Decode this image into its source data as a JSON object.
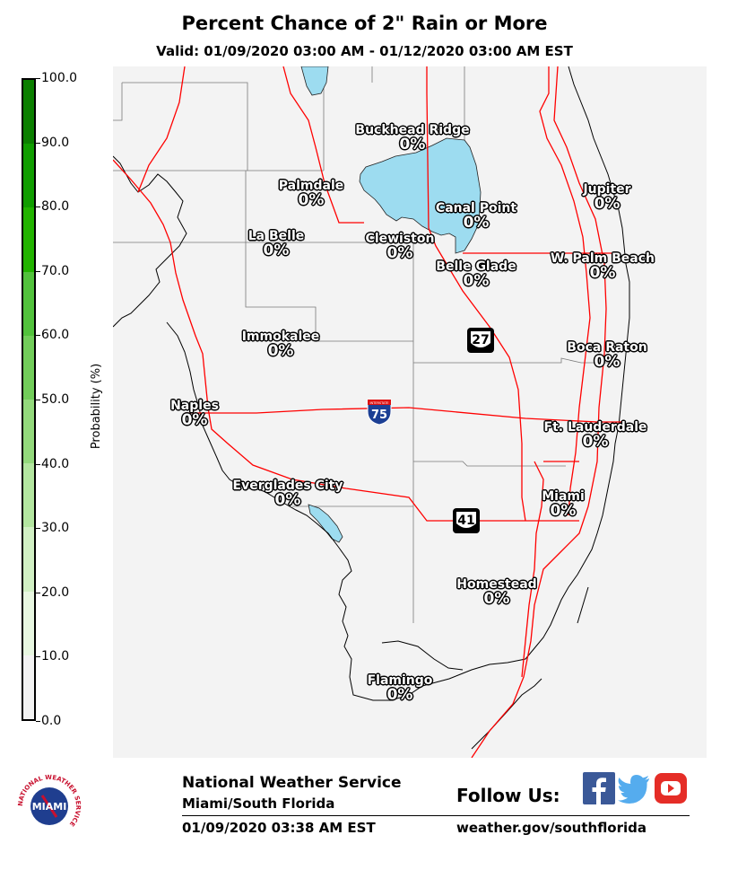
{
  "title": "Percent Chance of 2\" Rain or More",
  "subtitle": "Valid: 01/09/2020 03:00 AM - 01/12/2020 03:00 AM EST",
  "colorbar": {
    "label": "Probability (%)",
    "ticks": [
      "100.0",
      "90.0",
      "80.0",
      "70.0",
      "60.0",
      "50.0",
      "40.0",
      "30.0",
      "20.0",
      "10.0",
      "0.0"
    ],
    "colors": [
      "#0b7f00",
      "#109d00",
      "#22b300",
      "#52c23c",
      "#72cd5a",
      "#93d97c",
      "#b3e6a0",
      "#d1f0c4",
      "#e8f7e1",
      "#f3f3f3"
    ]
  },
  "map": {
    "land_color": "#f3f3f3",
    "water_color": "#9ddcf0",
    "road_color": "#ff0000"
  },
  "cities": [
    {
      "name": "Buckhead Ridge",
      "value": "0%"
    },
    {
      "name": "Palmdale",
      "value": "0%"
    },
    {
      "name": "Canal Point",
      "value": "0%"
    },
    {
      "name": "Jupiter",
      "value": "0%"
    },
    {
      "name": "La Belle",
      "value": "0%"
    },
    {
      "name": "Clewiston",
      "value": "0%"
    },
    {
      "name": "W. Palm Beach",
      "value": "0%"
    },
    {
      "name": "Belle Glade",
      "value": "0%"
    },
    {
      "name": "Immokalee",
      "value": "0%"
    },
    {
      "name": "Boca Raton",
      "value": "0%"
    },
    {
      "name": "Naples",
      "value": "0%"
    },
    {
      "name": "Ft. Lauderdale",
      "value": "0%"
    },
    {
      "name": "Everglades City",
      "value": "0%"
    },
    {
      "name": "Miami",
      "value": "0%"
    },
    {
      "name": "Homestead",
      "value": "0%"
    },
    {
      "name": "Flamingo",
      "value": "0%"
    }
  ],
  "highways": {
    "us27": "27",
    "i75": "75",
    "us41": "41",
    "interstate_word": "INTERSTATE"
  },
  "footer": {
    "agency": "National Weather Service",
    "office": "Miami/South Florida",
    "issued": "01/09/2020 03:38 AM EST",
    "follow": "Follow Us:",
    "url": "weather.gov/southflorida",
    "logo_text": "MIAMI",
    "logo_ring_text": "NATIONAL WEATHER SERVICE"
  }
}
